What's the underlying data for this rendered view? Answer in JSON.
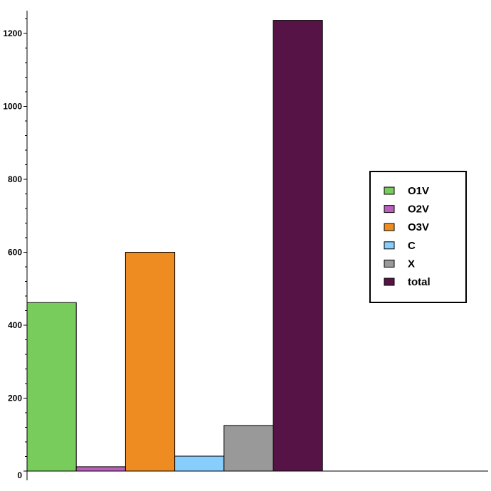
{
  "chart_data": {
    "type": "bar",
    "categories": [
      "O1V",
      "O2V",
      "O3V",
      "C",
      "X",
      "total"
    ],
    "values": [
      462,
      12,
      600,
      41,
      125,
      1236
    ],
    "colors": [
      "#77cc5b",
      "#bb5fbe",
      "#ee8c22",
      "#87cdfe",
      "#999999",
      "#561446"
    ],
    "y_ticks": [
      0,
      200,
      400,
      600,
      800,
      1000,
      1200
    ],
    "ylim": [
      0,
      1260
    ],
    "grid": false,
    "legend": {
      "placement": "right",
      "entries": [
        "O1V",
        "O2V",
        "O3V",
        "C",
        "X",
        "total"
      ]
    }
  }
}
